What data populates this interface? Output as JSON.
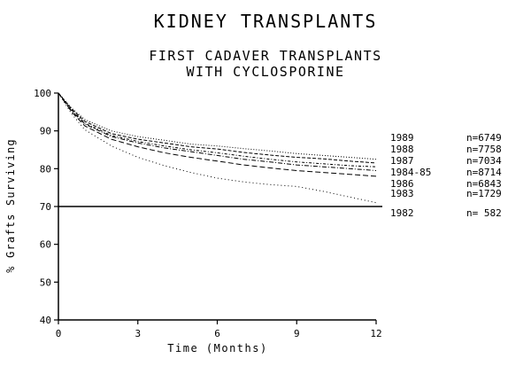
{
  "chart_data": {
    "type": "line",
    "title": "KIDNEY TRANSPLANTS",
    "subtitle": "FIRST CADAVER TRANSPLANTS",
    "subtitle2": "WITH CYCLOSPORINE",
    "xlabel": "Time (Months)",
    "ylabel": "% Grafts Surviving",
    "xlim": [
      0,
      12
    ],
    "ylim": [
      40,
      100
    ],
    "xticks": [
      0,
      3,
      6,
      9,
      12
    ],
    "yticks": [
      40,
      50,
      60,
      70,
      80,
      90,
      100
    ],
    "x": [
      0,
      0.5,
      1,
      2,
      3,
      4,
      5,
      6,
      7,
      8,
      9,
      10,
      11,
      12
    ],
    "reference_line": 70,
    "legend_position": "right",
    "series": [
      {
        "name": "1989",
        "n": "n=6749",
        "values": [
          100,
          96.0,
          93.0,
          90.0,
          88.5,
          87.5,
          86.5,
          86.0,
          85.3,
          84.7,
          84.0,
          83.5,
          83.0,
          82.5
        ]
      },
      {
        "name": "1988",
        "n": "n=7758",
        "values": [
          100,
          95.8,
          92.5,
          89.3,
          87.8,
          86.8,
          85.8,
          85.2,
          84.3,
          83.6,
          83.0,
          82.6,
          82.0,
          81.5
        ]
      },
      {
        "name": "1987",
        "n": "n=7034",
        "values": [
          100,
          95.5,
          92.0,
          88.8,
          87.2,
          86.0,
          85.0,
          84.2,
          83.3,
          82.5,
          81.8,
          81.3,
          80.8,
          80.5
        ]
      },
      {
        "name": "1984-85",
        "n": "n=8714",
        "values": [
          100,
          95.3,
          91.8,
          88.5,
          86.8,
          85.5,
          84.5,
          83.5,
          82.5,
          81.8,
          81.0,
          80.5,
          80.0,
          79.5
        ]
      },
      {
        "name": "1986",
        "n": "n=6843",
        "values": [
          100,
          95.0,
          91.3,
          87.8,
          85.8,
          84.2,
          83.0,
          82.0,
          81.0,
          80.2,
          79.5,
          79.0,
          78.5,
          78.0
        ]
      },
      {
        "name": "1983",
        "n": "n=1729",
        "values": [
          100,
          94.5,
          90.3,
          86.0,
          83.0,
          80.8,
          79.0,
          77.5,
          76.5,
          75.8,
          75.3,
          74.0,
          72.5,
          71.0
        ]
      },
      {
        "name": "1982",
        "n": "n= 582",
        "values": [
          70,
          70,
          70,
          70,
          70,
          70,
          70,
          70,
          70,
          70,
          70,
          70,
          70,
          70
        ]
      }
    ]
  }
}
